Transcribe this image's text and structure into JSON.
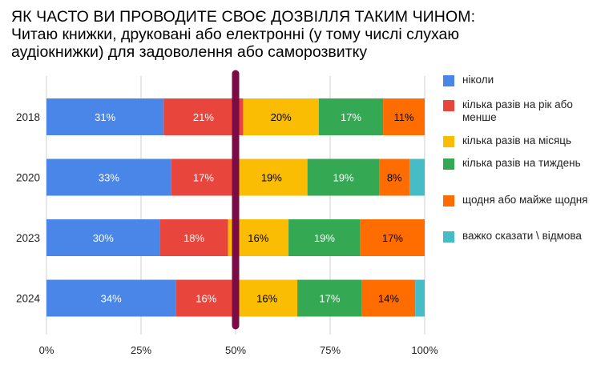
{
  "chart_data": {
    "type": "bar",
    "orientation": "horizontal",
    "stacked": true,
    "title": "ЯК ЧАСТО ВИ ПРОВОДИТЕ СВОЄ ДОЗВІЛЛЯ ТАКИМ ЧИНОМ:",
    "subtitle_lines": [
      "Читаю книжки, друковані або електронні (у тому числі слухаю",
      "аудіокнижки) для задоволення або саморозвитку"
    ],
    "categories": [
      "2018",
      "2020",
      "2023",
      "2024"
    ],
    "series": [
      {
        "name": "ніколи",
        "color": "#4a86e8",
        "label_color": "#ffffff",
        "values": [
          31,
          33,
          30,
          34
        ],
        "labels": [
          "31%",
          "33%",
          "30%",
          "34%"
        ]
      },
      {
        "name": "кілька разів на рік або менше",
        "color": "#e8453c",
        "label_color": "#ffffff",
        "values": [
          21,
          17,
          18,
          16
        ],
        "labels": [
          "21%",
          "17%",
          "18%",
          "16%"
        ]
      },
      {
        "name": "кілька разів на місяць",
        "color": "#fbbc04",
        "label_color": "#000000",
        "values": [
          20,
          19,
          16,
          16
        ],
        "labels": [
          "20%",
          "19%",
          "16%",
          "16%"
        ]
      },
      {
        "name": "кілька разів на тиждень",
        "color": "#34a853",
        "label_color": "#ffffff",
        "values": [
          17,
          19,
          19,
          17
        ],
        "labels": [
          "17%",
          "19%",
          "19%",
          "17%"
        ]
      },
      {
        "name": "щодня або майже щодня",
        "color": "#ff6d01",
        "label_color": "#000000",
        "values": [
          11,
          8,
          17,
          14
        ],
        "labels": [
          "11%",
          "8%",
          "17%",
          "14%"
        ]
      },
      {
        "name": "важко сказати \\ відмова",
        "color": "#46bdc6",
        "label_color": "#000000",
        "values": [
          0,
          4,
          0,
          2.5
        ],
        "labels": [
          "",
          "",
          "",
          ""
        ]
      }
    ],
    "x_ticks": [
      "0%",
      "25%",
      "50%",
      "75%",
      "100%"
    ],
    "xlim": [
      0,
      100
    ],
    "grid": true,
    "reference_line": {
      "value": 50,
      "color": "#7b0b45"
    },
    "legend_position": "right"
  }
}
